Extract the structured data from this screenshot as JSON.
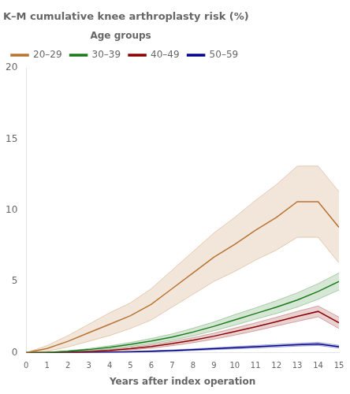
{
  "chart_data": {
    "type": "line",
    "title": "K–M cumulative knee arthroplasty risk (%)",
    "xlabel": "Years after index operation",
    "legend_title": "Age groups",
    "legend": "upper left",
    "grid": false,
    "xlim": [
      0,
      15
    ],
    "ylim": [
      0,
      20
    ],
    "xticks": [
      0,
      1,
      2,
      3,
      4,
      5,
      6,
      7,
      8,
      9,
      10,
      11,
      12,
      13,
      14,
      15
    ],
    "yticks": [
      0,
      5,
      10,
      15,
      20
    ],
    "x": [
      0,
      1,
      2,
      3,
      4,
      5,
      6,
      7,
      8,
      9,
      10,
      11,
      12,
      13,
      14,
      15
    ],
    "series": [
      {
        "name": "20–29",
        "color": "#b87333",
        "values": [
          0,
          0.3,
          0.8,
          1.4,
          2.0,
          2.6,
          3.4,
          4.5,
          5.6,
          6.7,
          7.6,
          8.6,
          9.5,
          10.6,
          10.6,
          8.8
        ],
        "lower": [
          0,
          0.1,
          0.4,
          0.8,
          1.2,
          1.7,
          2.3,
          3.2,
          4.1,
          5.0,
          5.7,
          6.5,
          7.2,
          8.1,
          8.1,
          6.3
        ],
        "upper": [
          0,
          0.5,
          1.2,
          2.0,
          2.8,
          3.5,
          4.5,
          5.8,
          7.1,
          8.4,
          9.5,
          10.7,
          11.8,
          13.1,
          13.1,
          11.3
        ]
      },
      {
        "name": "30–39",
        "color": "#1a7a1a",
        "values": [
          0,
          0.02,
          0.1,
          0.22,
          0.38,
          0.58,
          0.82,
          1.1,
          1.45,
          1.85,
          2.3,
          2.75,
          3.2,
          3.7,
          4.3,
          5.0
        ],
        "lower": [
          0,
          0.01,
          0.06,
          0.15,
          0.27,
          0.44,
          0.64,
          0.88,
          1.18,
          1.54,
          1.93,
          2.35,
          2.75,
          3.2,
          3.75,
          4.4
        ],
        "upper": [
          0,
          0.03,
          0.14,
          0.29,
          0.49,
          0.72,
          1.0,
          1.32,
          1.72,
          2.16,
          2.67,
          3.15,
          3.65,
          4.2,
          4.85,
          5.6
        ]
      },
      {
        "name": "40–49",
        "color": "#8b0000",
        "values": [
          0,
          0.0,
          0.03,
          0.08,
          0.16,
          0.28,
          0.44,
          0.64,
          0.88,
          1.16,
          1.48,
          1.82,
          2.18,
          2.55,
          2.9,
          2.1
        ],
        "lower": [
          0,
          0.0,
          0.01,
          0.04,
          0.1,
          0.19,
          0.32,
          0.49,
          0.7,
          0.95,
          1.23,
          1.54,
          1.87,
          2.2,
          2.52,
          1.7
        ],
        "upper": [
          0,
          0.0,
          0.05,
          0.12,
          0.22,
          0.37,
          0.56,
          0.79,
          1.06,
          1.37,
          1.73,
          2.1,
          2.49,
          2.9,
          3.28,
          2.5
        ]
      },
      {
        "name": "50–59",
        "color": "#00008b",
        "values": [
          0,
          0.0,
          0.0,
          0.01,
          0.03,
          0.06,
          0.1,
          0.15,
          0.21,
          0.28,
          0.35,
          0.42,
          0.49,
          0.56,
          0.62,
          0.42
        ],
        "lower": [
          0,
          0.0,
          0.0,
          0.0,
          0.01,
          0.03,
          0.06,
          0.1,
          0.15,
          0.21,
          0.27,
          0.33,
          0.39,
          0.46,
          0.51,
          0.32
        ],
        "upper": [
          0,
          0.0,
          0.0,
          0.02,
          0.05,
          0.09,
          0.14,
          0.2,
          0.27,
          0.35,
          0.43,
          0.51,
          0.59,
          0.66,
          0.73,
          0.52
        ]
      }
    ]
  }
}
